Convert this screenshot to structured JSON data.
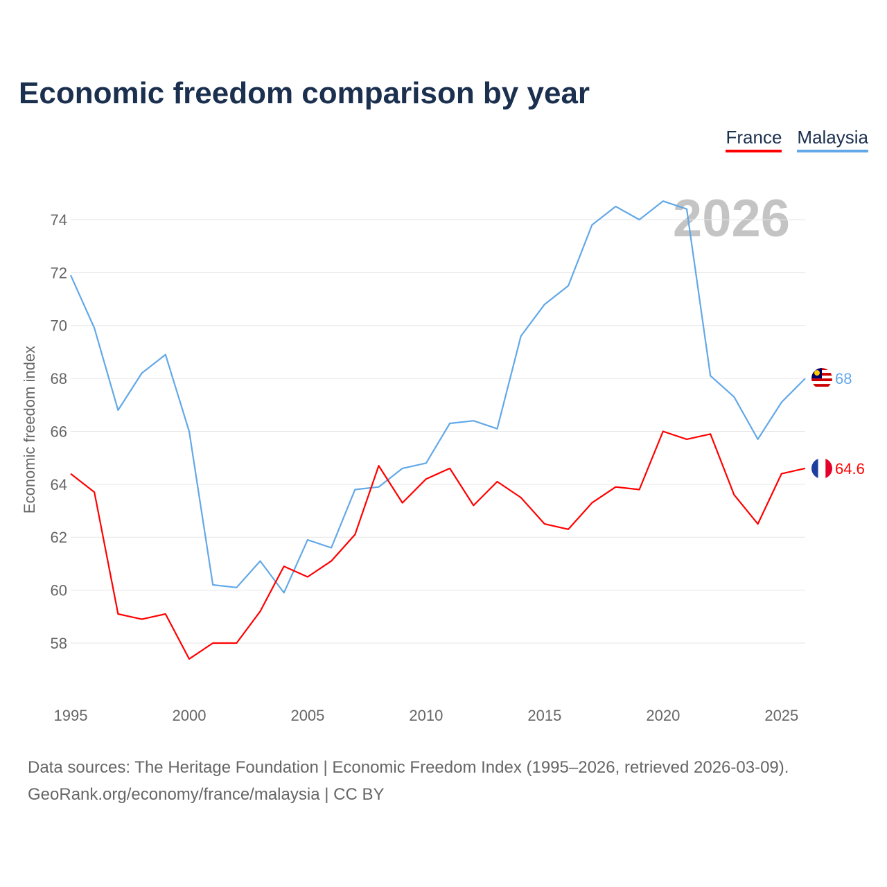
{
  "title": "Economic freedom comparison by year",
  "legend": [
    {
      "label": "France",
      "color": "#ff0000"
    },
    {
      "label": "Malaysia",
      "color": "#62a8e8"
    }
  ],
  "watermark_year": "2026",
  "source_line1": "Data sources: The Heritage Foundation | Economic Freedom Index (1995–2026, retrieved 2026-03-09).",
  "source_line2": "GeoRank.org/economy/france/malaysia | CC BY",
  "chart_data": {
    "type": "line",
    "title": "Economic freedom comparison by year",
    "xlabel": "",
    "ylabel": "Economic freedom index",
    "x": [
      1995,
      1996,
      1997,
      1998,
      1999,
      2000,
      2001,
      2002,
      2003,
      2004,
      2005,
      2006,
      2007,
      2008,
      2009,
      2010,
      2011,
      2012,
      2013,
      2014,
      2015,
      2016,
      2017,
      2018,
      2019,
      2020,
      2021,
      2022,
      2023,
      2024,
      2025,
      2026
    ],
    "xticks": [
      1995,
      2000,
      2005,
      2010,
      2015,
      2020,
      2025
    ],
    "yticks": [
      58,
      60,
      62,
      64,
      66,
      68,
      70,
      72,
      74
    ],
    "ylim": [
      56.3,
      75.5
    ],
    "xlim": [
      1995,
      2026
    ],
    "grid": true,
    "legend_position": "top-right",
    "series": [
      {
        "name": "France",
        "color": "#ff0000",
        "end_label": "64.6",
        "values": [
          64.4,
          63.7,
          59.1,
          58.9,
          59.1,
          57.4,
          58.0,
          58.0,
          59.2,
          60.9,
          60.5,
          61.1,
          62.1,
          64.7,
          63.3,
          64.2,
          64.6,
          63.2,
          64.1,
          63.5,
          62.5,
          62.3,
          63.3,
          63.9,
          63.8,
          66.0,
          65.7,
          65.9,
          63.6,
          62.5,
          64.4,
          64.6
        ]
      },
      {
        "name": "Malaysia",
        "color": "#62a8e8",
        "end_label": "68",
        "values": [
          71.9,
          69.9,
          66.8,
          68.2,
          68.9,
          66.0,
          60.2,
          60.1,
          61.1,
          59.9,
          61.9,
          61.6,
          63.8,
          63.9,
          64.6,
          64.8,
          66.3,
          66.4,
          66.1,
          69.6,
          70.8,
          71.5,
          73.8,
          74.5,
          74.0,
          74.7,
          74.4,
          68.1,
          67.3,
          65.7,
          67.1,
          68.0
        ]
      }
    ]
  }
}
